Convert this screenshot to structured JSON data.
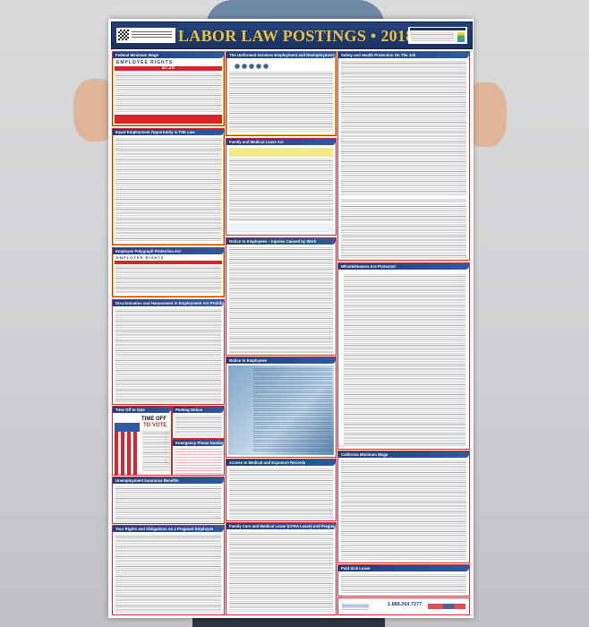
{
  "poster": {
    "title": "LABOR LAW POSTINGS • 2018",
    "panels": {
      "federal_min_wage": {
        "title": "Federal Minimum Wage",
        "banner": "EMPLOYEE RIGHTS",
        "wage": "$7.25"
      },
      "userra": {
        "title": "The Uniformed Services Employment and Reemployment Rights Act"
      },
      "osha": {
        "title": "Safety and Health Protection On The Job"
      },
      "eeo": {
        "title": "Equal Employment Opportunity is THE Law"
      },
      "fmla": {
        "title": "Family and Medical Leave Act"
      },
      "polygraph": {
        "title": "Employee Polygraph Protection Act",
        "banner": "EMPLOYEE RIGHTS"
      },
      "workcomp": {
        "title": "Notice to Employees – Injuries Caused by Work"
      },
      "whistleblower": {
        "title": "Whistleblowers Are Protected"
      },
      "discrimination": {
        "title": "Discrimination and Harassment in Employment Are Prohibited By Law"
      },
      "notice": {
        "title": "Notice to Employees"
      },
      "vote": {
        "title": "Time Off to Vote",
        "headline1": "TIME OFF",
        "headline2": "TO VOTE"
      },
      "posting": {
        "title": "Posting Notice"
      },
      "emergency": {
        "title": "Emergency Phone Numbers"
      },
      "unemployment": {
        "title": "Unemployment Insurance Benefits"
      },
      "medical_records": {
        "title": "Access to Medical and Exposure Records"
      },
      "ca_min_wage": {
        "title": "California Minimum Wage"
      },
      "pregnant": {
        "title": "Your Rights and Obligations As a Pregnant Employee"
      },
      "cfra": {
        "title": "Family Care and Medical Leave (CFRA Leave) and Pregnancy Disability Leave"
      },
      "sick_leave": {
        "title": "Paid Sick Leave"
      }
    },
    "footer": {
      "phone": "1.888.264.7277"
    }
  },
  "colors": {
    "header_bg": "#1b3163",
    "title_gold": "#e8c23a",
    "border_red": "#d8232a",
    "panel_header_blue": "#1f3d78"
  }
}
